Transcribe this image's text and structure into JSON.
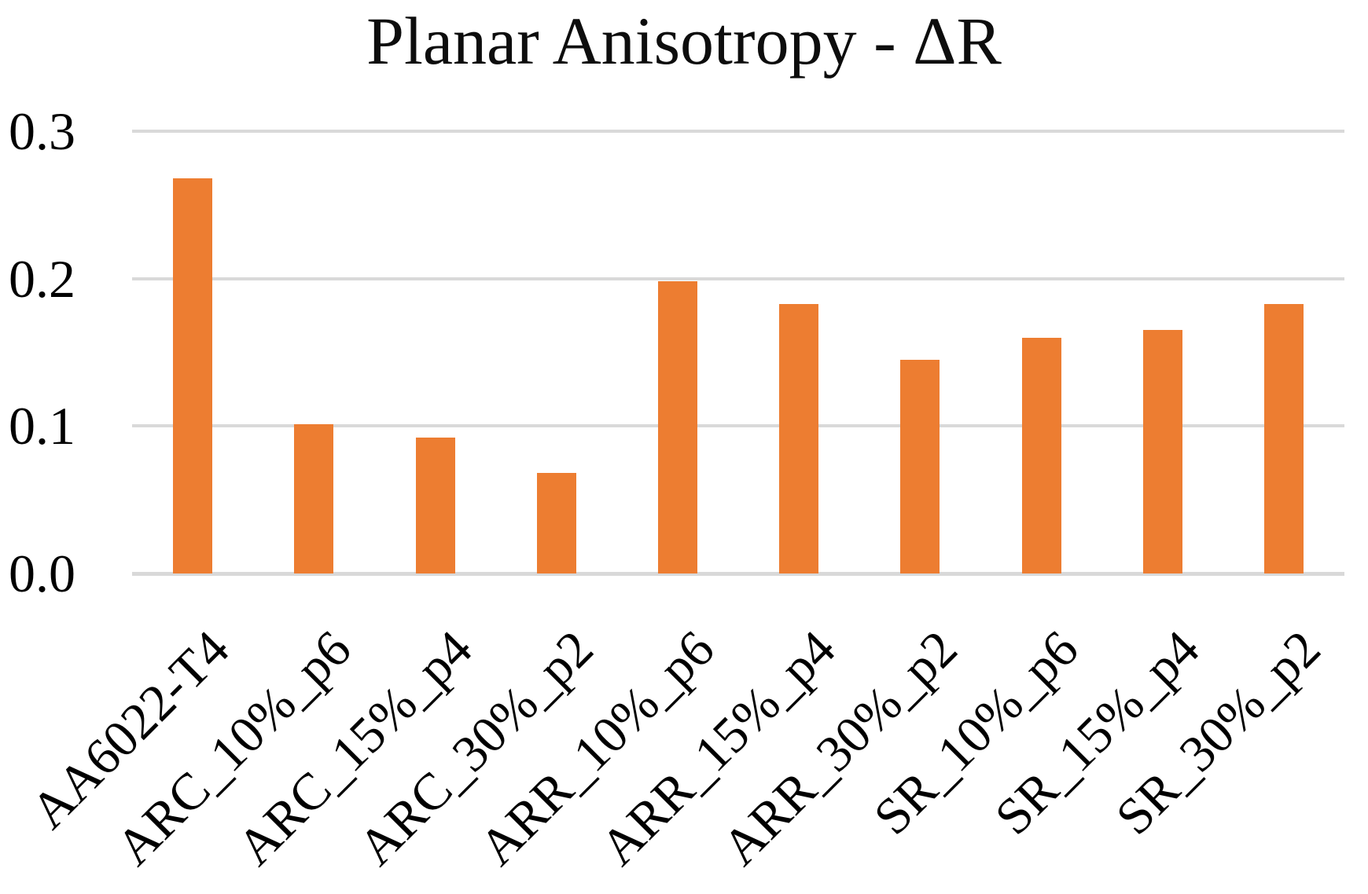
{
  "chart_data": {
    "type": "bar",
    "title": "Planar Anisotropy - ΔR",
    "categories": [
      "AA6022-T4",
      "ARC_10%_p6",
      "ARC_15%_p4",
      "ARC_30%_p2",
      "ARR_10%_p6",
      "ARR_15%_p4",
      "ARR_30%_p2",
      "SR_10%_p6",
      "SR_15%_p4",
      "SR_30%_p2"
    ],
    "values": [
      0.268,
      0.101,
      0.092,
      0.068,
      0.198,
      0.183,
      0.145,
      0.16,
      0.165,
      0.183
    ],
    "xlabel": "",
    "ylabel": "",
    "ylim": [
      0.0,
      0.3
    ],
    "ytick_labels": [
      "0.0",
      "0.1",
      "0.2",
      "0.3"
    ],
    "ytick_values": [
      0.0,
      0.1,
      0.2,
      0.3
    ],
    "grid": "horizontal",
    "legend": "none",
    "xlabel_rotation_deg": 45,
    "bar_color": "#ed7d31",
    "gridline_color": "#d9d9d9",
    "text_color": "#000000"
  }
}
